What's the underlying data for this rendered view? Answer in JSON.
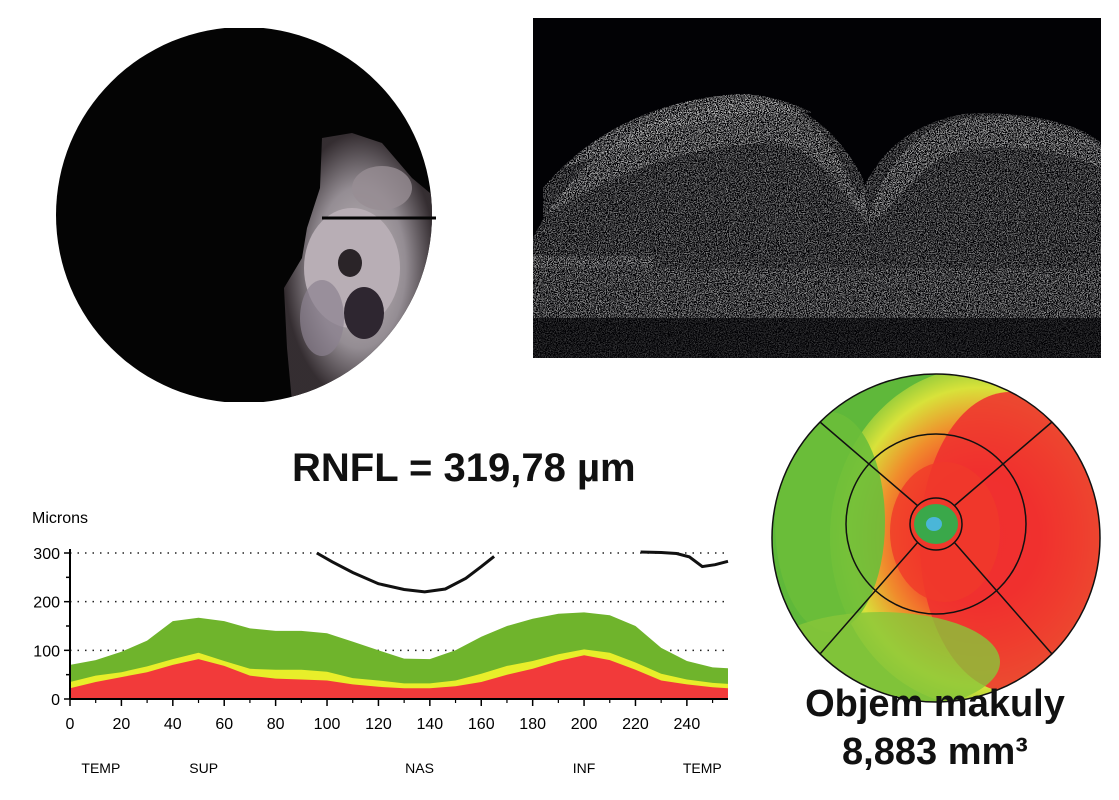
{
  "rnfl": {
    "label": "RNFL = 319,78 µm"
  },
  "macula": {
    "label": "Objem makuly",
    "value": "8,883 mm³"
  },
  "colors": {
    "green": "#6fb42c",
    "yellow": "#e8ee2a",
    "red": "#f23a3a",
    "normal_line": "#111111"
  },
  "chart_data": {
    "type": "area",
    "ylabel": "Microns",
    "ylim": [
      0,
      300
    ],
    "xlim": [
      0,
      256
    ],
    "yticks": [
      "0",
      "100",
      "200",
      "300"
    ],
    "xticks": [
      "0",
      "20",
      "40",
      "60",
      "80",
      "100",
      "120",
      "140",
      "160",
      "180",
      "200",
      "220",
      "240"
    ],
    "regions": [
      "TEMP",
      "SUP",
      "NAS",
      "INF",
      "TEMP"
    ],
    "grid": "dotted horizontal at 100, 200, 300",
    "x": [
      0,
      10,
      20,
      30,
      40,
      50,
      60,
      70,
      80,
      90,
      100,
      110,
      120,
      130,
      140,
      150,
      160,
      170,
      180,
      190,
      200,
      210,
      220,
      230,
      240,
      250,
      256
    ],
    "series": [
      {
        "values": [
          70,
          80,
          97,
          120,
          160,
          167,
          160,
          145,
          140,
          140,
          135,
          118,
          100,
          83,
          82,
          100,
          128,
          150,
          165,
          175,
          178,
          172,
          150,
          105,
          78,
          65,
          63
        ]
      },
      {
        "values": [
          35,
          48,
          55,
          67,
          82,
          95,
          78,
          62,
          60,
          60,
          56,
          43,
          38,
          32,
          32,
          38,
          52,
          68,
          78,
          92,
          102,
          95,
          75,
          52,
          40,
          33,
          31
        ]
      },
      {
        "values": [
          22,
          35,
          45,
          55,
          70,
          82,
          68,
          48,
          42,
          40,
          38,
          30,
          25,
          22,
          22,
          26,
          35,
          50,
          62,
          78,
          90,
          80,
          60,
          38,
          30,
          24,
          22
        ]
      }
    ],
    "measured": [
      {
        "x": [
          96,
          102,
          110,
          120,
          130,
          138,
          146,
          154,
          160,
          165
        ],
        "y": [
          300,
          282,
          260,
          237,
          225,
          220,
          226,
          248,
          272,
          293
        ]
      },
      {
        "x": [
          222,
          230,
          236,
          241,
          246,
          251,
          256
        ],
        "y": [
          302,
          301,
          299,
          292,
          272,
          276,
          283
        ]
      }
    ]
  }
}
